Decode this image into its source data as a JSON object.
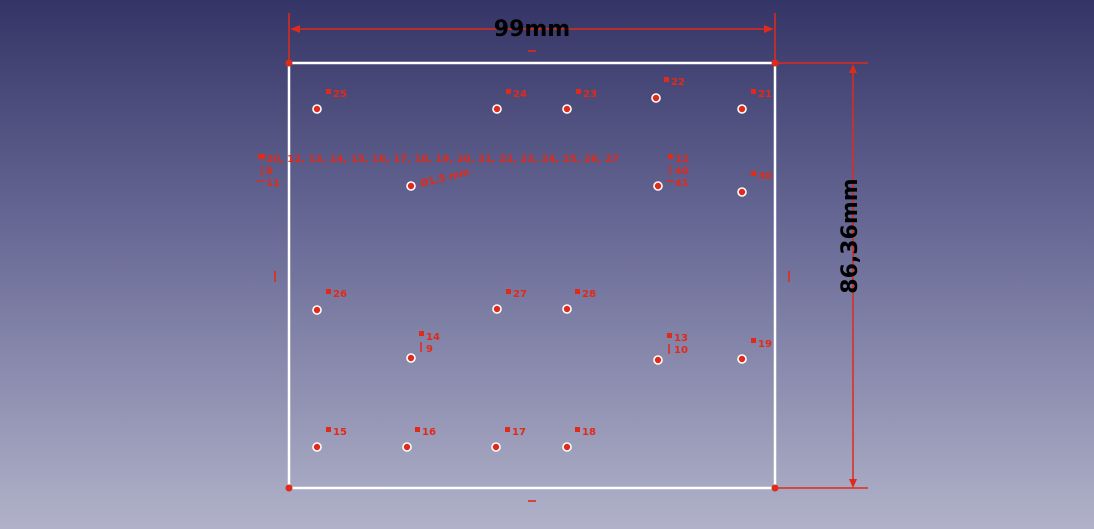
{
  "colors": {
    "constraint": "#e02a1a",
    "edge": "#ffffff",
    "dimension_text": "#000000",
    "point_fill": "#e02a1a",
    "point_ring": "#ffffff"
  },
  "dimensions": {
    "width_label": "99mm",
    "height_label": "86,36mm",
    "diameter_label": "Ø1,5 mm"
  },
  "equal_list": {
    "label": "20, 12, 13, 14, 15, 16, 17, 18, 19, 20, 21, 22, 23, 24, 25, 26, 27",
    "sub1": "8",
    "sub2": "11"
  },
  "constraints": {
    "c25": "25",
    "c24": "24",
    "c23": "23",
    "c22": "22",
    "c21": "21",
    "c12": "12",
    "c40": "40",
    "c41": "41",
    "c30": "30",
    "c26": "26",
    "c27": "27",
    "c28": "28",
    "c14": "14",
    "c9": "9",
    "c13": "13",
    "c10": "10",
    "c19": "19",
    "c15": "15",
    "c16": "16",
    "c17": "17",
    "c18": "18"
  }
}
